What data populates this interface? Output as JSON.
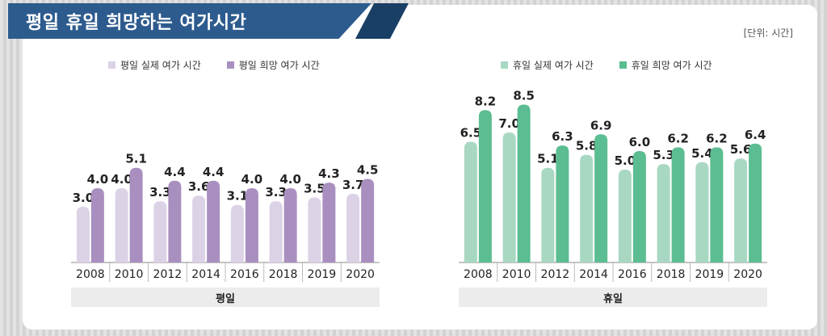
{
  "title": "평일 휴일 희망하는 여가시간",
  "unit": "[단위: 시간]",
  "colors": {
    "weekday_actual": "#dcd2e6",
    "weekday_hope": "#a98fbf",
    "holiday_actual": "#a8d8c2",
    "holiday_hope": "#5bbd91",
    "title_bg": "#2d5b8e"
  },
  "chart_data": [
    {
      "type": "bar",
      "panel_label": "평일",
      "categories": [
        "2008",
        "2010",
        "2012",
        "2014",
        "2016",
        "2018",
        "2019",
        "2020"
      ],
      "series": [
        {
          "name": "평일 실제 여가 시간",
          "values": [
            3.0,
            4.0,
            3.3,
            3.6,
            3.1,
            3.3,
            3.5,
            3.7
          ]
        },
        {
          "name": "평일 희망 여가 시간",
          "values": [
            4.0,
            5.1,
            4.4,
            4.4,
            4.0,
            4.0,
            4.3,
            4.5
          ]
        }
      ],
      "legend_position": "top"
    },
    {
      "type": "bar",
      "panel_label": "휴일",
      "categories": [
        "2008",
        "2010",
        "2012",
        "2014",
        "2016",
        "2018",
        "2019",
        "2020"
      ],
      "series": [
        {
          "name": "휴일 실제 여가 시간",
          "values": [
            6.5,
            7.0,
            5.1,
            5.8,
            5.0,
            5.3,
            5.4,
            5.6
          ]
        },
        {
          "name": "휴일 희망 여가 시간",
          "values": [
            8.2,
            8.5,
            6.3,
            6.9,
            6.0,
            6.2,
            6.2,
            6.4
          ]
        }
      ],
      "legend_position": "top"
    }
  ]
}
